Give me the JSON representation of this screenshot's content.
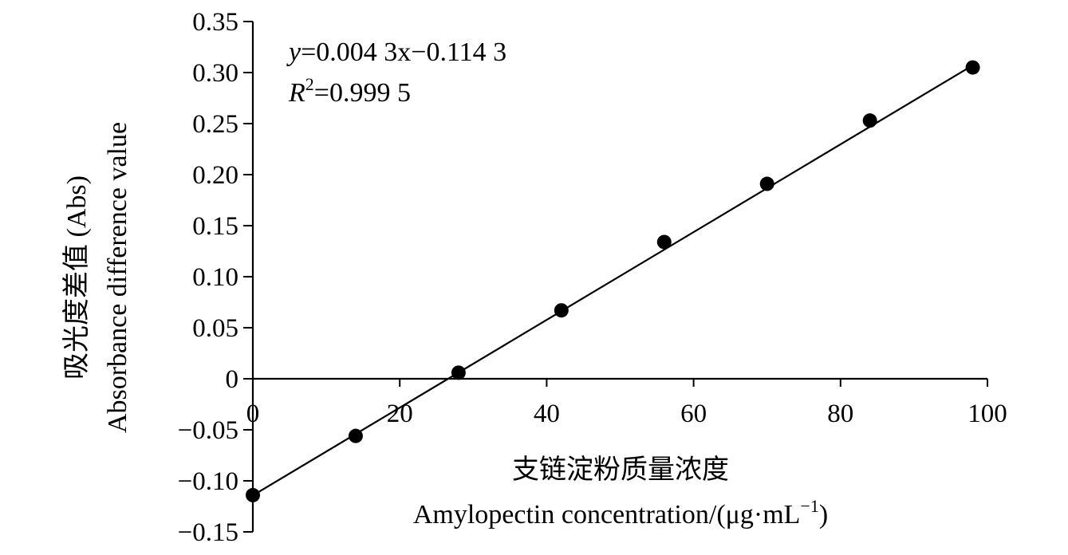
{
  "chart_data": {
    "type": "scatter",
    "title": "",
    "xlabel_cn": "支链淀粉质量浓度",
    "xlabel_en": "Amylopectin concentration/(μg·mL",
    "xlabel_sup": "−1",
    "xlabel_close": ")",
    "ylabel_cn": "吸光度差值 (Abs)",
    "ylabel_en": "Absorbance difference value",
    "xlim": [
      0,
      100
    ],
    "ylim": [
      -0.15,
      0.35
    ],
    "x_ticks": [
      0,
      20,
      40,
      60,
      80,
      100
    ],
    "x_tick_labels": [
      "0",
      "20",
      "40",
      "60",
      "80",
      "100"
    ],
    "y_ticks": [
      0.35,
      0.3,
      0.25,
      0.2,
      0.15,
      0.1,
      0.05,
      0,
      -0.05,
      -0.1,
      -0.15
    ],
    "y_tick_labels": [
      "0.35",
      "0.30",
      "0.25",
      "0.20",
      "0.15",
      "0.10",
      "0.05",
      "0",
      "−0.05",
      "−0.10",
      "−0.15"
    ],
    "x": [
      0,
      14,
      28,
      42,
      56,
      70,
      84,
      98
    ],
    "y": [
      -0.114,
      -0.056,
      0.006,
      0.067,
      0.134,
      0.191,
      0.253,
      0.305
    ],
    "fit": {
      "slope": 0.0043,
      "intercept": -0.1143,
      "x_range": [
        0,
        98
      ]
    },
    "equation": {
      "line1_var": "y",
      "line1_rest": "=0.004 3x−0.114 3",
      "line2_var": "R",
      "line2_sup": "2",
      "line2_rest": "=0.999 5"
    },
    "grid": false,
    "legend": "none",
    "marker_color": "#000000",
    "line_color": "#000000"
  }
}
